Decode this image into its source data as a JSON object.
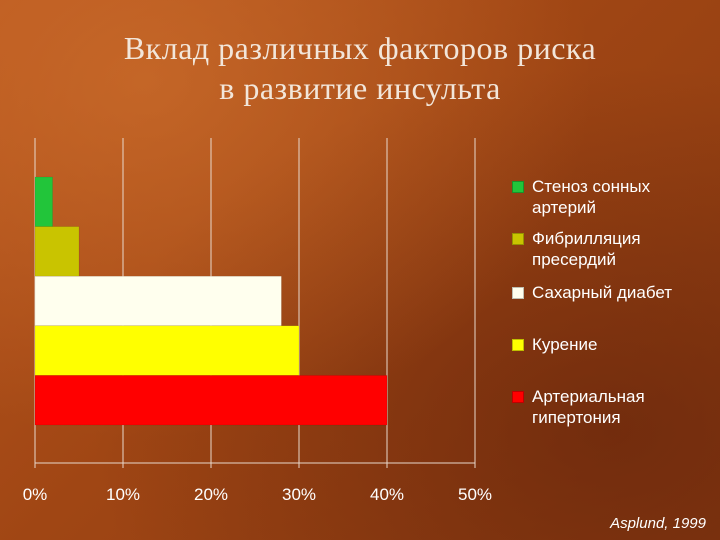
{
  "slide": {
    "title_line1": "Вклад различных факторов риска",
    "title_line2": "в развитие инсульта",
    "source": "Asplund, 1999"
  },
  "chart_data": {
    "type": "bar",
    "orientation": "horizontal",
    "categories": [
      "Стеноз сонных артерий",
      "Фибрилляция пресердий",
      "Сахарный диабет",
      "Курение",
      "Артериальная гипертония"
    ],
    "values": [
      2,
      5,
      28,
      30,
      40
    ],
    "colors": [
      "#22c53a",
      "#c9c400",
      "#ffffee",
      "#ffff00",
      "#ff0000"
    ],
    "x_ticks": [
      "0%",
      "10%",
      "20%",
      "30%",
      "40%",
      "50%"
    ],
    "xlim": [
      0,
      50
    ],
    "grid": "vertical",
    "legend_position": "right"
  }
}
